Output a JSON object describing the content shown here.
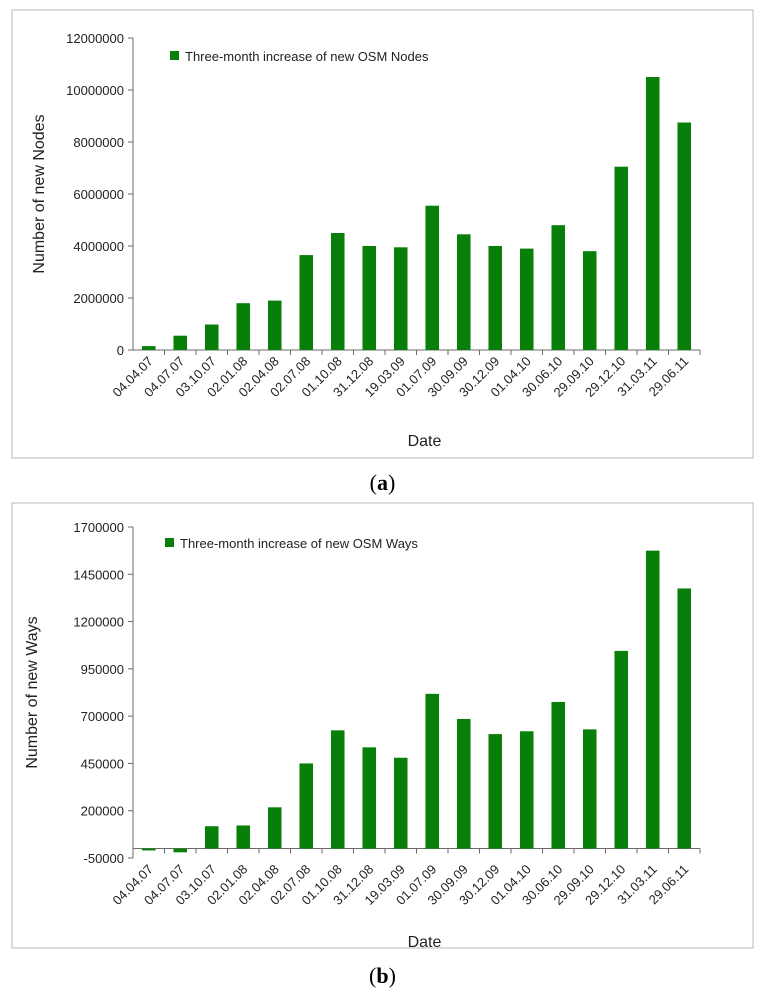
{
  "colors": {
    "bar": "#087f08",
    "frame": "#b9b9b9",
    "axis": "#6b6b6b"
  },
  "chart_data": [
    {
      "type": "bar",
      "legend": "Three-month increase of new OSM Nodes",
      "xlabel": "Date",
      "ylabel": "Number of new Nodes",
      "ylim": [
        0,
        12000000
      ],
      "yticks": [
        "0",
        "2000000",
        "4000000",
        "6000000",
        "8000000",
        "10000000",
        "12000000"
      ],
      "ytick_values": [
        0,
        2000000,
        4000000,
        6000000,
        8000000,
        10000000,
        12000000
      ],
      "categories": [
        "04.04.07",
        "04.07.07",
        "03.10.07",
        "02.01.08",
        "02.04.08",
        "02.07.08",
        "01.10.08",
        "31.12.08",
        "19.03.09",
        "01.07.09",
        "30.09.09",
        "30.12.09",
        "01.04.10",
        "30.06.10",
        "29.09.10",
        "29.12.10",
        "31.03.11",
        "29.06.11"
      ],
      "values": [
        150000,
        550000,
        980000,
        1800000,
        1900000,
        3650000,
        4500000,
        4000000,
        3950000,
        5550000,
        4450000,
        4000000,
        3900000,
        4800000,
        3800000,
        7050000,
        10500000,
        8750000
      ],
      "caption_label": "a"
    },
    {
      "type": "bar",
      "legend": "Three-month increase of new OSM Ways",
      "xlabel": "Date",
      "ylabel": "Number of new Ways",
      "ylim": [
        -50000,
        1700000
      ],
      "yticks": [
        "-50000",
        "200000",
        "450000",
        "700000",
        "950000",
        "1200000",
        "1450000",
        "1700000"
      ],
      "ytick_values": [
        -50000,
        200000,
        450000,
        700000,
        950000,
        1200000,
        1450000,
        1700000
      ],
      "categories": [
        "04.04.07",
        "04.07.07",
        "03.10.07",
        "02.01.08",
        "02.04.08",
        "02.07.08",
        "01.10.08",
        "31.12.08",
        "19.03.09",
        "01.07.09",
        "30.09.09",
        "30.12.09",
        "01.04.10",
        "30.06.10",
        "29.09.10",
        "29.12.10",
        "31.03.11",
        "29.06.11"
      ],
      "values": [
        -10000,
        -20000,
        118000,
        122000,
        218000,
        450000,
        625000,
        535000,
        480000,
        818000,
        685000,
        605000,
        620000,
        775000,
        630000,
        1045000,
        1575000,
        1375000
      ],
      "caption_label": "b"
    }
  ]
}
